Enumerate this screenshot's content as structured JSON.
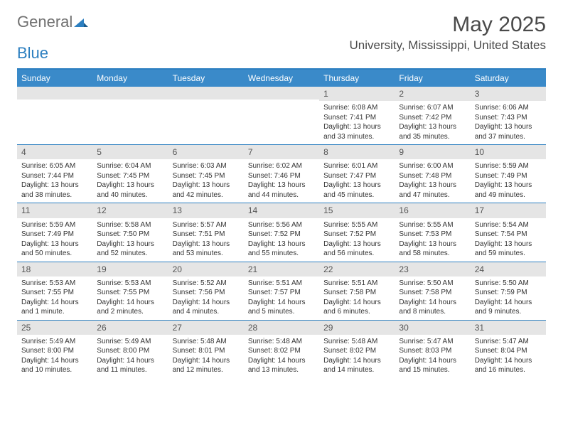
{
  "logo": {
    "general": "General",
    "blue": "Blue"
  },
  "title": "May 2025",
  "location": "University, Mississippi, United States",
  "dayHeaders": [
    "Sunday",
    "Monday",
    "Tuesday",
    "Wednesday",
    "Thursday",
    "Friday",
    "Saturday"
  ],
  "colors": {
    "headerBg": "#3a8ac9",
    "borderBlue": "#2c7fc0",
    "dayNumBg": "#e5e5e5",
    "text": "#333333",
    "titleText": "#4a4a4a"
  },
  "weeks": [
    [
      {
        "num": "",
        "sunrise": "",
        "sunset": "",
        "daylight1": "",
        "daylight2": ""
      },
      {
        "num": "",
        "sunrise": "",
        "sunset": "",
        "daylight1": "",
        "daylight2": ""
      },
      {
        "num": "",
        "sunrise": "",
        "sunset": "",
        "daylight1": "",
        "daylight2": ""
      },
      {
        "num": "",
        "sunrise": "",
        "sunset": "",
        "daylight1": "",
        "daylight2": ""
      },
      {
        "num": "1",
        "sunrise": "Sunrise: 6:08 AM",
        "sunset": "Sunset: 7:41 PM",
        "daylight1": "Daylight: 13 hours",
        "daylight2": "and 33 minutes."
      },
      {
        "num": "2",
        "sunrise": "Sunrise: 6:07 AM",
        "sunset": "Sunset: 7:42 PM",
        "daylight1": "Daylight: 13 hours",
        "daylight2": "and 35 minutes."
      },
      {
        "num": "3",
        "sunrise": "Sunrise: 6:06 AM",
        "sunset": "Sunset: 7:43 PM",
        "daylight1": "Daylight: 13 hours",
        "daylight2": "and 37 minutes."
      }
    ],
    [
      {
        "num": "4",
        "sunrise": "Sunrise: 6:05 AM",
        "sunset": "Sunset: 7:44 PM",
        "daylight1": "Daylight: 13 hours",
        "daylight2": "and 38 minutes."
      },
      {
        "num": "5",
        "sunrise": "Sunrise: 6:04 AM",
        "sunset": "Sunset: 7:45 PM",
        "daylight1": "Daylight: 13 hours",
        "daylight2": "and 40 minutes."
      },
      {
        "num": "6",
        "sunrise": "Sunrise: 6:03 AM",
        "sunset": "Sunset: 7:45 PM",
        "daylight1": "Daylight: 13 hours",
        "daylight2": "and 42 minutes."
      },
      {
        "num": "7",
        "sunrise": "Sunrise: 6:02 AM",
        "sunset": "Sunset: 7:46 PM",
        "daylight1": "Daylight: 13 hours",
        "daylight2": "and 44 minutes."
      },
      {
        "num": "8",
        "sunrise": "Sunrise: 6:01 AM",
        "sunset": "Sunset: 7:47 PM",
        "daylight1": "Daylight: 13 hours",
        "daylight2": "and 45 minutes."
      },
      {
        "num": "9",
        "sunrise": "Sunrise: 6:00 AM",
        "sunset": "Sunset: 7:48 PM",
        "daylight1": "Daylight: 13 hours",
        "daylight2": "and 47 minutes."
      },
      {
        "num": "10",
        "sunrise": "Sunrise: 5:59 AM",
        "sunset": "Sunset: 7:49 PM",
        "daylight1": "Daylight: 13 hours",
        "daylight2": "and 49 minutes."
      }
    ],
    [
      {
        "num": "11",
        "sunrise": "Sunrise: 5:59 AM",
        "sunset": "Sunset: 7:49 PM",
        "daylight1": "Daylight: 13 hours",
        "daylight2": "and 50 minutes."
      },
      {
        "num": "12",
        "sunrise": "Sunrise: 5:58 AM",
        "sunset": "Sunset: 7:50 PM",
        "daylight1": "Daylight: 13 hours",
        "daylight2": "and 52 minutes."
      },
      {
        "num": "13",
        "sunrise": "Sunrise: 5:57 AM",
        "sunset": "Sunset: 7:51 PM",
        "daylight1": "Daylight: 13 hours",
        "daylight2": "and 53 minutes."
      },
      {
        "num": "14",
        "sunrise": "Sunrise: 5:56 AM",
        "sunset": "Sunset: 7:52 PM",
        "daylight1": "Daylight: 13 hours",
        "daylight2": "and 55 minutes."
      },
      {
        "num": "15",
        "sunrise": "Sunrise: 5:55 AM",
        "sunset": "Sunset: 7:52 PM",
        "daylight1": "Daylight: 13 hours",
        "daylight2": "and 56 minutes."
      },
      {
        "num": "16",
        "sunrise": "Sunrise: 5:55 AM",
        "sunset": "Sunset: 7:53 PM",
        "daylight1": "Daylight: 13 hours",
        "daylight2": "and 58 minutes."
      },
      {
        "num": "17",
        "sunrise": "Sunrise: 5:54 AM",
        "sunset": "Sunset: 7:54 PM",
        "daylight1": "Daylight: 13 hours",
        "daylight2": "and 59 minutes."
      }
    ],
    [
      {
        "num": "18",
        "sunrise": "Sunrise: 5:53 AM",
        "sunset": "Sunset: 7:55 PM",
        "daylight1": "Daylight: 14 hours",
        "daylight2": "and 1 minute."
      },
      {
        "num": "19",
        "sunrise": "Sunrise: 5:53 AM",
        "sunset": "Sunset: 7:55 PM",
        "daylight1": "Daylight: 14 hours",
        "daylight2": "and 2 minutes."
      },
      {
        "num": "20",
        "sunrise": "Sunrise: 5:52 AM",
        "sunset": "Sunset: 7:56 PM",
        "daylight1": "Daylight: 14 hours",
        "daylight2": "and 4 minutes."
      },
      {
        "num": "21",
        "sunrise": "Sunrise: 5:51 AM",
        "sunset": "Sunset: 7:57 PM",
        "daylight1": "Daylight: 14 hours",
        "daylight2": "and 5 minutes."
      },
      {
        "num": "22",
        "sunrise": "Sunrise: 5:51 AM",
        "sunset": "Sunset: 7:58 PM",
        "daylight1": "Daylight: 14 hours",
        "daylight2": "and 6 minutes."
      },
      {
        "num": "23",
        "sunrise": "Sunrise: 5:50 AM",
        "sunset": "Sunset: 7:58 PM",
        "daylight1": "Daylight: 14 hours",
        "daylight2": "and 8 minutes."
      },
      {
        "num": "24",
        "sunrise": "Sunrise: 5:50 AM",
        "sunset": "Sunset: 7:59 PM",
        "daylight1": "Daylight: 14 hours",
        "daylight2": "and 9 minutes."
      }
    ],
    [
      {
        "num": "25",
        "sunrise": "Sunrise: 5:49 AM",
        "sunset": "Sunset: 8:00 PM",
        "daylight1": "Daylight: 14 hours",
        "daylight2": "and 10 minutes."
      },
      {
        "num": "26",
        "sunrise": "Sunrise: 5:49 AM",
        "sunset": "Sunset: 8:00 PM",
        "daylight1": "Daylight: 14 hours",
        "daylight2": "and 11 minutes."
      },
      {
        "num": "27",
        "sunrise": "Sunrise: 5:48 AM",
        "sunset": "Sunset: 8:01 PM",
        "daylight1": "Daylight: 14 hours",
        "daylight2": "and 12 minutes."
      },
      {
        "num": "28",
        "sunrise": "Sunrise: 5:48 AM",
        "sunset": "Sunset: 8:02 PM",
        "daylight1": "Daylight: 14 hours",
        "daylight2": "and 13 minutes."
      },
      {
        "num": "29",
        "sunrise": "Sunrise: 5:48 AM",
        "sunset": "Sunset: 8:02 PM",
        "daylight1": "Daylight: 14 hours",
        "daylight2": "and 14 minutes."
      },
      {
        "num": "30",
        "sunrise": "Sunrise: 5:47 AM",
        "sunset": "Sunset: 8:03 PM",
        "daylight1": "Daylight: 14 hours",
        "daylight2": "and 15 minutes."
      },
      {
        "num": "31",
        "sunrise": "Sunrise: 5:47 AM",
        "sunset": "Sunset: 8:04 PM",
        "daylight1": "Daylight: 14 hours",
        "daylight2": "and 16 minutes."
      }
    ]
  ]
}
